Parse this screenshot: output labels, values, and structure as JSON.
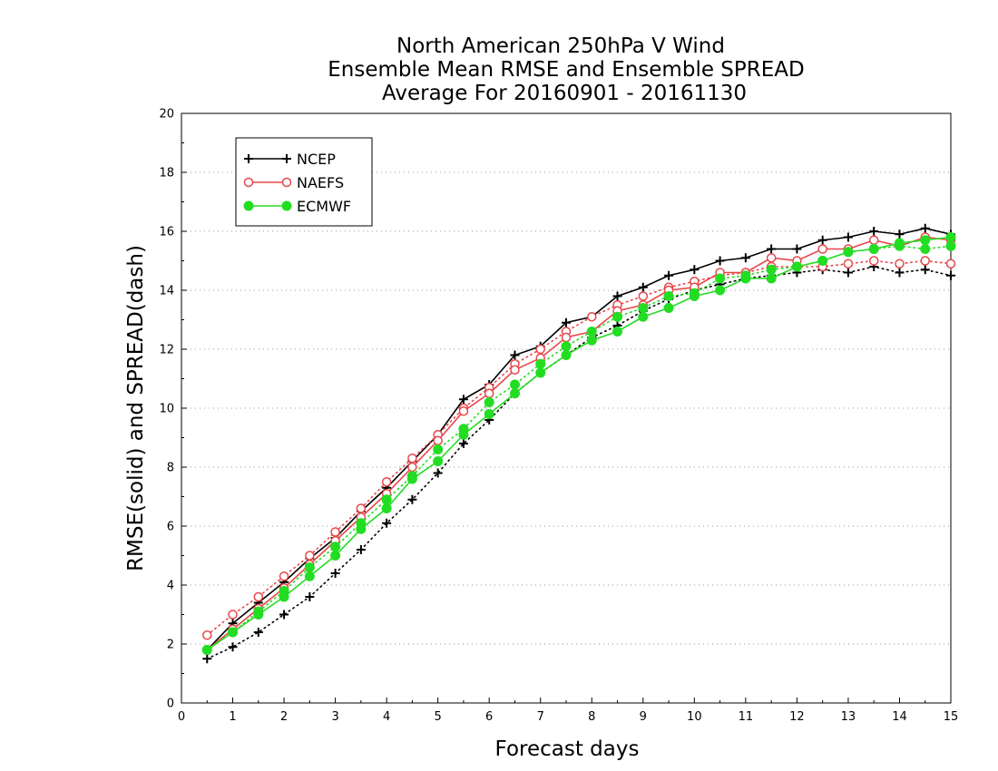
{
  "chart_data": {
    "type": "line",
    "title_lines": [
      "North American 250hPa V Wind",
      "Ensemble Mean RMSE and Ensemble SPREAD",
      "Average For 20160901 - 20161130"
    ],
    "xlabel": "Forecast days",
    "ylabel": "RMSE(solid) and SPREAD(dash)",
    "xlim": [
      0,
      15
    ],
    "ylim": [
      0,
      20
    ],
    "x_ticks": [
      "0",
      "1",
      "2",
      "3",
      "4",
      "5",
      "6",
      "7",
      "8",
      "9",
      "10",
      "11",
      "12",
      "13",
      "14",
      "15"
    ],
    "y_ticks": [
      "0",
      "2",
      "4",
      "6",
      "8",
      "10",
      "12",
      "14",
      "16",
      "18",
      "20"
    ],
    "grid": "horizontal dotted",
    "legend_position": "top-left",
    "x": [
      0.5,
      1,
      1.5,
      2,
      2.5,
      3,
      3.5,
      4,
      4.5,
      5,
      5.5,
      6,
      6.5,
      7,
      7.5,
      8,
      8.5,
      9,
      9.5,
      10,
      10.5,
      11,
      11.5,
      12,
      12.5,
      13,
      13.5,
      14,
      14.5,
      15
    ],
    "series": [
      {
        "name": "NCEP",
        "color": "#000000",
        "marker": "plus",
        "rmse": [
          1.8,
          2.7,
          3.4,
          4.1,
          4.9,
          5.6,
          6.5,
          7.3,
          8.2,
          9.1,
          10.3,
          10.8,
          11.8,
          12.1,
          12.9,
          13.1,
          13.8,
          14.1,
          14.5,
          14.7,
          15.0,
          15.1,
          15.4,
          15.4,
          15.7,
          15.8,
          16.0,
          15.9,
          16.1,
          15.9
        ],
        "spread": [
          1.5,
          1.9,
          2.4,
          3.0,
          3.6,
          4.4,
          5.2,
          6.1,
          6.9,
          7.8,
          8.8,
          9.6,
          10.5,
          11.2,
          11.8,
          12.4,
          12.8,
          13.3,
          13.7,
          14.0,
          14.2,
          14.4,
          14.5,
          14.6,
          14.7,
          14.6,
          14.8,
          14.6,
          14.7,
          14.5
        ]
      },
      {
        "name": "NAEFS",
        "color": "#e8474a",
        "marker": "open-circle",
        "rmse": [
          1.8,
          2.5,
          3.2,
          3.9,
          4.7,
          5.5,
          6.3,
          7.1,
          8.0,
          8.9,
          9.9,
          10.5,
          11.3,
          11.7,
          12.4,
          12.6,
          13.3,
          13.5,
          14.0,
          14.1,
          14.6,
          14.6,
          15.1,
          15.0,
          15.4,
          15.4,
          15.7,
          15.5,
          15.8,
          15.7
        ],
        "spread": [
          2.3,
          3.0,
          3.6,
          4.3,
          5.0,
          5.8,
          6.6,
          7.5,
          8.3,
          9.1,
          10.0,
          10.7,
          11.5,
          12.0,
          12.6,
          13.1,
          13.5,
          13.8,
          14.1,
          14.3,
          14.5,
          14.6,
          14.8,
          14.8,
          14.8,
          14.9,
          15.0,
          14.9,
          15.0,
          14.9
        ]
      },
      {
        "name": "ECMWF",
        "color": "#22dd22",
        "marker": "filled-circle",
        "rmse": [
          1.8,
          2.4,
          3.0,
          3.6,
          4.3,
          5.0,
          5.9,
          6.6,
          7.6,
          8.2,
          9.1,
          9.8,
          10.5,
          11.2,
          11.8,
          12.3,
          12.6,
          13.1,
          13.4,
          13.8,
          14.0,
          14.4,
          14.4,
          14.8,
          15.0,
          15.3,
          15.4,
          15.6,
          15.7,
          15.8
        ],
        "spread": [
          1.8,
          2.4,
          3.1,
          3.8,
          4.6,
          5.3,
          6.1,
          6.9,
          7.7,
          8.6,
          9.3,
          10.2,
          10.8,
          11.5,
          12.1,
          12.6,
          13.1,
          13.4,
          13.8,
          13.9,
          14.4,
          14.5,
          14.7,
          14.8,
          15.0,
          15.3,
          15.4,
          15.5,
          15.4,
          15.5
        ]
      }
    ]
  }
}
